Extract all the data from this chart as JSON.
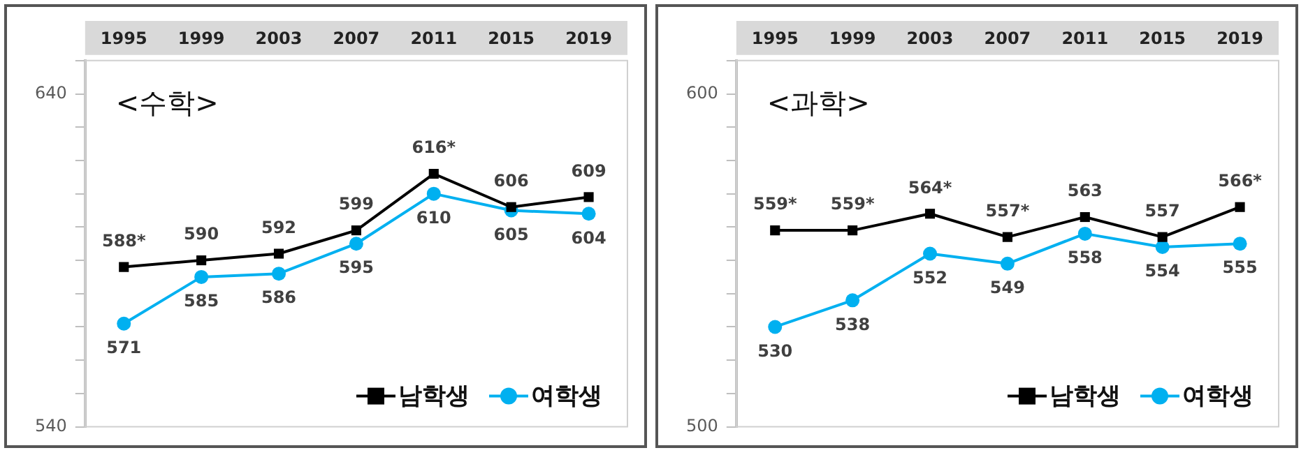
{
  "chart_data": [
    {
      "type": "line",
      "title": "<수학>",
      "categories": [
        "1995",
        "1999",
        "2003",
        "2007",
        "2011",
        "2015",
        "2019"
      ],
      "ylim": [
        540,
        650
      ],
      "yticks": [
        540,
        {
          "value": 550,
          "label": null
        },
        {
          "value": 560,
          "label": null
        },
        {
          "value": 570,
          "label": null
        },
        {
          "value": 580,
          "label": null
        },
        {
          "value": 590,
          "label": null
        },
        {
          "value": 600,
          "label": null
        },
        {
          "value": 610,
          "label": null
        },
        {
          "value": 620,
          "label": null
        },
        {
          "value": 630,
          "label": null
        },
        640,
        {
          "value": 650,
          "label": null
        }
      ],
      "grid": false,
      "legend": "bottom right",
      "series": [
        {
          "name": "남학생",
          "color": "#000000",
          "marker": "square",
          "values": [
            588,
            590,
            592,
            599,
            616,
            606,
            609
          ],
          "value_labels": [
            "588*",
            "590",
            "592",
            "599",
            "616*",
            "606",
            "609"
          ]
        },
        {
          "name": "여학생",
          "color": "#00b0f0",
          "marker": "circle",
          "values": [
            571,
            585,
            586,
            595,
            610,
            605,
            604
          ],
          "value_labels": [
            "571",
            "585",
            "586",
            "595",
            "610",
            "605",
            "604"
          ]
        }
      ]
    },
    {
      "type": "line",
      "title": "<과학>",
      "categories": [
        "1995",
        "1999",
        "2003",
        "2007",
        "2011",
        "2015",
        "2019"
      ],
      "ylim": [
        500,
        610
      ],
      "yticks": [
        500,
        {
          "value": 510,
          "label": null
        },
        {
          "value": 520,
          "label": null
        },
        {
          "value": 530,
          "label": null
        },
        {
          "value": 540,
          "label": null
        },
        {
          "value": 550,
          "label": null
        },
        {
          "value": 560,
          "label": null
        },
        {
          "value": 570,
          "label": null
        },
        {
          "value": 580,
          "label": null
        },
        {
          "value": 590,
          "label": null
        },
        600,
        {
          "value": 610,
          "label": null
        }
      ],
      "grid": false,
      "legend": "bottom right",
      "series": [
        {
          "name": "남학생",
          "color": "#000000",
          "marker": "square",
          "values": [
            559,
            559,
            564,
            557,
            563,
            557,
            566
          ],
          "value_labels": [
            "559*",
            "559*",
            "564*",
            "557*",
            "563",
            "557",
            "566*"
          ]
        },
        {
          "name": "여학생",
          "color": "#00b0f0",
          "marker": "circle",
          "values": [
            530,
            538,
            552,
            549,
            558,
            554,
            555
          ],
          "value_labels": [
            "530",
            "538",
            "552",
            "549",
            "558",
            "554",
            "555"
          ]
        }
      ]
    }
  ]
}
